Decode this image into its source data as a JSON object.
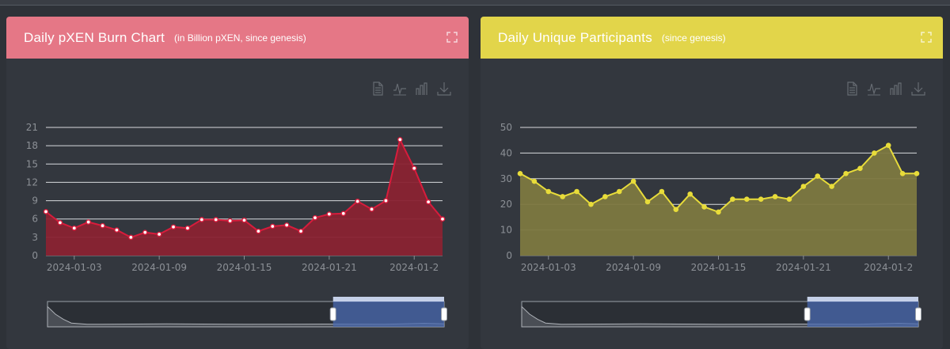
{
  "panels": [
    {
      "title": "Daily pXEN Burn Chart",
      "subtitle": "(in Billion pXEN, since genesis)",
      "header_color": "#e57786",
      "title_color": "#ffffff",
      "subtitle_color": "#ffffff",
      "icons": [
        "expand-icon",
        "data-view-icon",
        "line-chart-icon",
        "bar-chart-icon",
        "download-icon"
      ]
    },
    {
      "title": "Daily Unique Participants",
      "subtitle": "(since genesis)",
      "header_color": "#e2d54a",
      "title_color": "#ffffff",
      "subtitle_color": "#ffffff",
      "icons": [
        "expand-icon",
        "data-view-icon",
        "line-chart-icon",
        "bar-chart-icon",
        "download-icon"
      ]
    }
  ],
  "chart_data": [
    {
      "type": "area",
      "title": "Daily pXEN Burn Chart",
      "x_tick_labels": [
        "2024-01-03",
        "2024-01-09",
        "2024-01-15",
        "2024-01-21",
        "2024-01-2"
      ],
      "y_ticks": [
        0,
        3,
        6,
        9,
        12,
        15,
        18,
        21
      ],
      "ylim": [
        0,
        21
      ],
      "grid": true,
      "line_color": "#d81c3c",
      "fill_color": "#8a2232",
      "x": [
        "2024-01-01",
        "2024-01-02",
        "2024-01-03",
        "2024-01-04",
        "2024-01-05",
        "2024-01-06",
        "2024-01-07",
        "2024-01-08",
        "2024-01-09",
        "2024-01-10",
        "2024-01-11",
        "2024-01-12",
        "2024-01-13",
        "2024-01-14",
        "2024-01-15",
        "2024-01-16",
        "2024-01-17",
        "2024-01-18",
        "2024-01-19",
        "2024-01-20",
        "2024-01-21",
        "2024-01-22",
        "2024-01-23",
        "2024-01-24",
        "2024-01-25",
        "2024-01-26",
        "2024-01-27",
        "2024-01-28",
        "2024-01-29"
      ],
      "series": [
        {
          "values": [
            7.2,
            5.4,
            4.5,
            5.5,
            4.9,
            4.2,
            3.0,
            3.8,
            3.5,
            4.7,
            4.5,
            5.9,
            5.9,
            5.7,
            5.8,
            4.0,
            4.8,
            5.0,
            4.0,
            6.2,
            6.8,
            6.9,
            8.9,
            7.6,
            9.0,
            19.0,
            14.3,
            8.8,
            6.0
          ]
        }
      ],
      "zoom_window": [
        0.72,
        1.0
      ]
    },
    {
      "type": "area",
      "title": "Daily Unique Participants",
      "x_tick_labels": [
        "2024-01-03",
        "2024-01-09",
        "2024-01-15",
        "2024-01-21",
        "2024-01-2"
      ],
      "y_ticks": [
        0,
        10,
        20,
        30,
        40,
        50
      ],
      "ylim": [
        0,
        50
      ],
      "grid": true,
      "line_color": "#e8dc3a",
      "fill_color": "#7d7840",
      "x": [
        "2024-01-01",
        "2024-01-02",
        "2024-01-03",
        "2024-01-04",
        "2024-01-05",
        "2024-01-06",
        "2024-01-07",
        "2024-01-08",
        "2024-01-09",
        "2024-01-10",
        "2024-01-11",
        "2024-01-12",
        "2024-01-13",
        "2024-01-14",
        "2024-01-15",
        "2024-01-16",
        "2024-01-17",
        "2024-01-18",
        "2024-01-19",
        "2024-01-20",
        "2024-01-21",
        "2024-01-22",
        "2024-01-23",
        "2024-01-24",
        "2024-01-25",
        "2024-01-26",
        "2024-01-27",
        "2024-01-28",
        "2024-01-29"
      ],
      "series": [
        {
          "values": [
            32,
            29,
            25,
            23,
            25,
            20,
            23,
            25,
            29,
            21,
            25,
            18,
            24,
            19,
            17,
            22,
            22,
            22,
            23,
            22,
            27,
            31,
            27,
            32,
            34,
            40,
            43,
            32,
            32
          ]
        }
      ],
      "zoom_window": [
        0.72,
        1.0
      ]
    }
  ]
}
